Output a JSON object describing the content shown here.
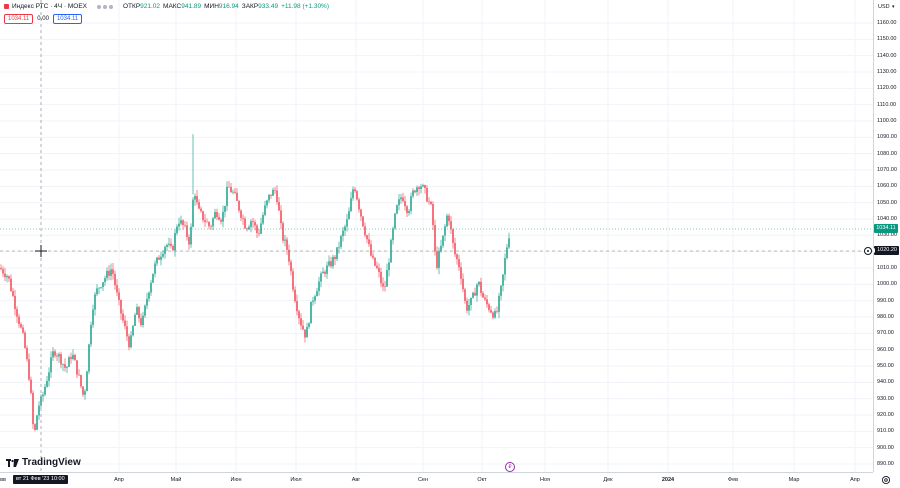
{
  "legend": {
    "title": "Индекс РТС · 4Ч · MOEX",
    "open_label": "ОТКР",
    "open_value": "921.02",
    "high_label": "МАКС",
    "high_value": "941.89",
    "low_label": "МИН",
    "low_value": "916.94",
    "close_label": "ЗАКР",
    "close_value": "933.49",
    "change": "+11.98 (+1.30%)"
  },
  "quote": {
    "sell": "1034.11",
    "spread": "0.00",
    "buy": "1034.11"
  },
  "currency": "USD",
  "price_axis": [
    "1160.00",
    "1150.00",
    "1140.00",
    "1130.00",
    "1120.00",
    "1110.00",
    "1100.00",
    "1090.00",
    "1080.00",
    "1070.00",
    "1060.00",
    "1050.00",
    "1040.00",
    "1030.00",
    "1020.00",
    "1010.00",
    "1000.00",
    "990.00",
    "980.00",
    "970.00",
    "960.00",
    "950.00",
    "940.00",
    "930.00",
    "920.00",
    "910.00",
    "900.00",
    "890.00"
  ],
  "time_axis": [
    "вв",
    "Апр",
    "Май",
    "Июн",
    "Июл",
    "Авг",
    "Сен",
    "Окт",
    "Ноя",
    "Дек",
    "2024",
    "Фев",
    "Мар",
    "Апр"
  ],
  "last_price_tag": "1034.11",
  "crosshair_price_tag": "1020.20",
  "crosshair_time_tag": "вт 21 Фев '23  10:00",
  "event_marker": "₽",
  "branding": "TradingView",
  "colors": {
    "up": "#089981",
    "down": "#f23645",
    "last_price": "#089981",
    "crosshair": "#131722"
  },
  "chart_data": {
    "type": "candlestick",
    "ylim": [
      885,
      1165
    ],
    "anchors": [
      [
        0,
        1010
      ],
      [
        8,
        1005
      ],
      [
        16,
        985
      ],
      [
        24,
        965
      ],
      [
        30,
        940
      ],
      [
        34,
        905
      ],
      [
        38,
        925
      ],
      [
        42,
        930
      ],
      [
        48,
        945
      ],
      [
        54,
        960
      ],
      [
        60,
        955
      ],
      [
        66,
        948
      ],
      [
        72,
        958
      ],
      [
        78,
        945
      ],
      [
        84,
        930
      ],
      [
        88,
        955
      ],
      [
        92,
        985
      ],
      [
        96,
        995
      ],
      [
        100,
        1000
      ],
      [
        106,
        1005
      ],
      [
        112,
        1010
      ],
      [
        118,
        990
      ],
      [
        124,
        975
      ],
      [
        130,
        962
      ],
      [
        136,
        985
      ],
      [
        142,
        975
      ],
      [
        148,
        995
      ],
      [
        154,
        1010
      ],
      [
        160,
        1018
      ],
      [
        166,
        1025
      ],
      [
        172,
        1020
      ],
      [
        178,
        1040
      ],
      [
        184,
        1035
      ],
      [
        190,
        1025
      ],
      [
        194,
        1060
      ],
      [
        198,
        1045
      ],
      [
        204,
        1040
      ],
      [
        210,
        1035
      ],
      [
        216,
        1045
      ],
      [
        222,
        1040
      ],
      [
        228,
        1060
      ],
      [
        234,
        1055
      ],
      [
        240,
        1045
      ],
      [
        246,
        1035
      ],
      [
        252,
        1040
      ],
      [
        258,
        1030
      ],
      [
        264,
        1045
      ],
      [
        270,
        1055
      ],
      [
        276,
        1058
      ],
      [
        282,
        1030
      ],
      [
        288,
        1020
      ],
      [
        294,
        995
      ],
      [
        300,
        978
      ],
      [
        306,
        968
      ],
      [
        312,
        990
      ],
      [
        318,
        1000
      ],
      [
        324,
        1008
      ],
      [
        330,
        1012
      ],
      [
        336,
        1018
      ],
      [
        342,
        1030
      ],
      [
        348,
        1040
      ],
      [
        354,
        1062
      ],
      [
        360,
        1045
      ],
      [
        366,
        1030
      ],
      [
        372,
        1015
      ],
      [
        378,
        1008
      ],
      [
        384,
        995
      ],
      [
        390,
        1020
      ],
      [
        396,
        1045
      ],
      [
        402,
        1055
      ],
      [
        408,
        1045
      ],
      [
        414,
        1058
      ],
      [
        420,
        1062
      ],
      [
        426,
        1055
      ],
      [
        432,
        1045
      ],
      [
        436,
        1010
      ],
      [
        442,
        1025
      ],
      [
        448,
        1045
      ],
      [
        454,
        1020
      ],
      [
        460,
        1010
      ],
      [
        466,
        985
      ],
      [
        472,
        990
      ],
      [
        478,
        1002
      ],
      [
        484,
        990
      ],
      [
        490,
        985
      ],
      [
        496,
        980
      ],
      [
        502,
        1000
      ],
      [
        506,
        1020
      ],
      [
        510,
        1034
      ]
    ]
  }
}
